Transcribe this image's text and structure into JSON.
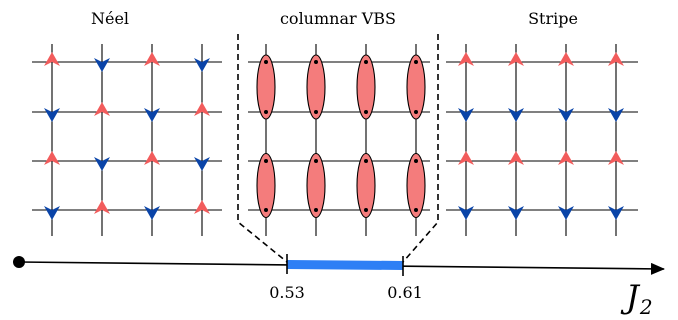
{
  "panels": {
    "neel": {
      "title": "Néel"
    },
    "vbs": {
      "title": "columnar VBS"
    },
    "stripe": {
      "title": "Stripe"
    }
  },
  "axis": {
    "symbol": "J",
    "subscript": "2",
    "ticks": [
      "0.53",
      "0.61"
    ]
  },
  "colors": {
    "up_arrow": "#f25c5c",
    "down_arrow": "#0a44a8",
    "dimer_fill": "#f47c7c",
    "vbs_bar": "#2e7ff5",
    "line": "#000000"
  }
}
